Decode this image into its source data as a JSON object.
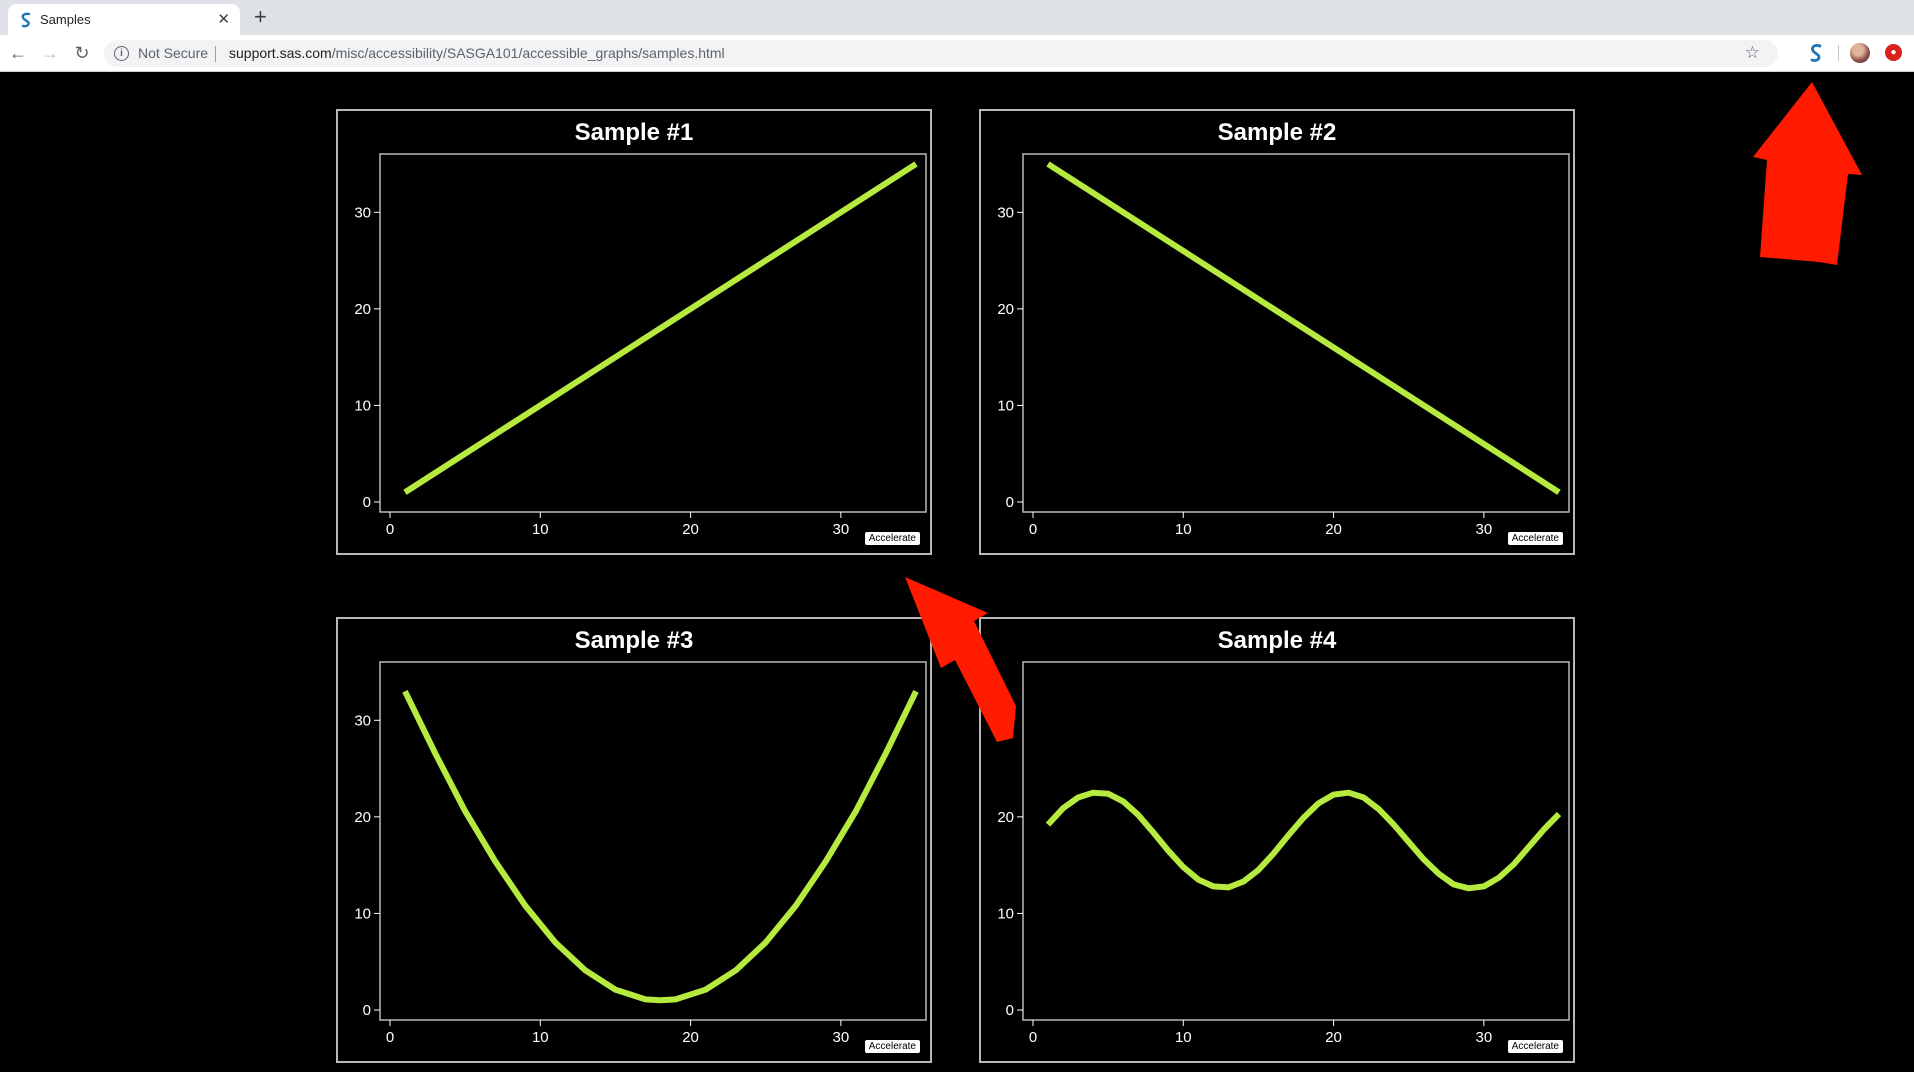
{
  "browser": {
    "tab_title": "Samples",
    "security_label": "Not Secure",
    "url_host": "support.sas.com",
    "url_path": "/misc/accessibility/SASGA101/accessible_graphs/samples.html"
  },
  "colors": {
    "line": "#b6ea3f",
    "background": "#000000",
    "annotation_arrow": "#ff1a00"
  },
  "icons": {
    "back": "back-arrow-icon",
    "forward": "forward-arrow-icon",
    "reload": "reload-icon",
    "bookmark": "star-icon",
    "extension": "sas-extension-icon"
  },
  "accelerate_label": "Accelerate",
  "chart_data": [
    {
      "type": "line",
      "title": "Sample #1",
      "xlim": [
        0,
        35
      ],
      "ylim": [
        0,
        35
      ],
      "xticks": [
        0,
        10,
        20,
        30
      ],
      "yticks": [
        0,
        10,
        20,
        30
      ],
      "x": [
        1,
        35
      ],
      "y": [
        1,
        35
      ]
    },
    {
      "type": "line",
      "title": "Sample #2",
      "xlim": [
        0,
        35
      ],
      "ylim": [
        0,
        35
      ],
      "xticks": [
        0,
        10,
        20,
        30
      ],
      "yticks": [
        0,
        10,
        20,
        30
      ],
      "x": [
        1,
        35
      ],
      "y": [
        35,
        1
      ]
    },
    {
      "type": "line",
      "title": "Sample #3",
      "xlim": [
        0,
        35
      ],
      "ylim": [
        0,
        35
      ],
      "xticks": [
        0,
        10,
        20,
        30
      ],
      "yticks": [
        0,
        10,
        20,
        30
      ],
      "x": [
        1,
        3,
        5,
        7,
        9,
        11,
        13,
        15,
        17,
        18,
        19,
        21,
        23,
        25,
        27,
        29,
        31,
        33,
        35
      ],
      "y": [
        33,
        26.6,
        20.6,
        15.4,
        10.8,
        7.0,
        4.1,
        2.1,
        1.1,
        1,
        1.1,
        2.1,
        4.1,
        7.0,
        10.8,
        15.4,
        20.6,
        26.6,
        33
      ]
    },
    {
      "type": "line",
      "title": "Sample #4",
      "xlim": [
        0,
        35
      ],
      "ylim": [
        0,
        35
      ],
      "xticks": [
        0,
        10,
        20,
        30
      ],
      "yticks": [
        0,
        10,
        20
      ],
      "x": [
        1,
        2,
        3,
        4,
        5,
        6,
        7,
        8,
        9,
        10,
        11,
        12,
        13,
        14,
        15,
        16,
        17,
        18,
        19,
        20,
        21,
        22,
        23,
        24,
        25,
        26,
        27,
        28,
        29,
        30,
        31,
        32,
        33,
        34,
        35
      ],
      "y": [
        19.2,
        20.9,
        22.0,
        22.5,
        22.4,
        21.6,
        20.2,
        18.4,
        16.5,
        14.8,
        13.5,
        12.8,
        12.7,
        13.3,
        14.5,
        16.2,
        18.1,
        19.9,
        21.4,
        22.3,
        22.5,
        22.0,
        20.8,
        19.2,
        17.4,
        15.6,
        14.1,
        13.0,
        12.6,
        12.8,
        13.7,
        15.1,
        16.9,
        18.7,
        20.3
      ]
    }
  ]
}
